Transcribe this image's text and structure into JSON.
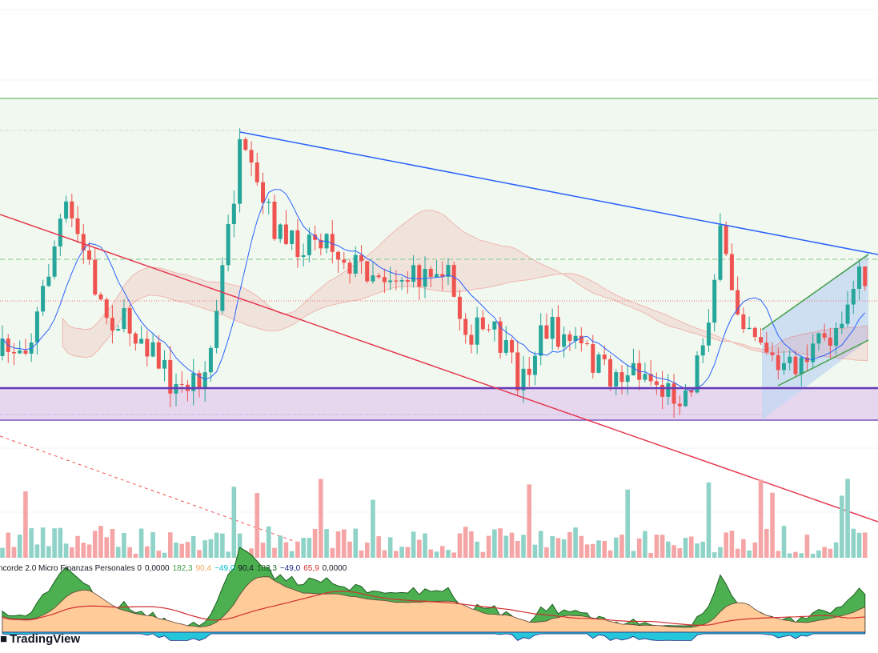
{
  "legend": {
    "name": "ncorde 2.0 Micro Finanzas Personales 0",
    "values": [
      "0,0000",
      "182,3",
      "90,4",
      "−49,0",
      "90,4",
      "182,3",
      "−49,0",
      "65,9",
      "0,0000"
    ]
  },
  "brand": "TradingView"
}
